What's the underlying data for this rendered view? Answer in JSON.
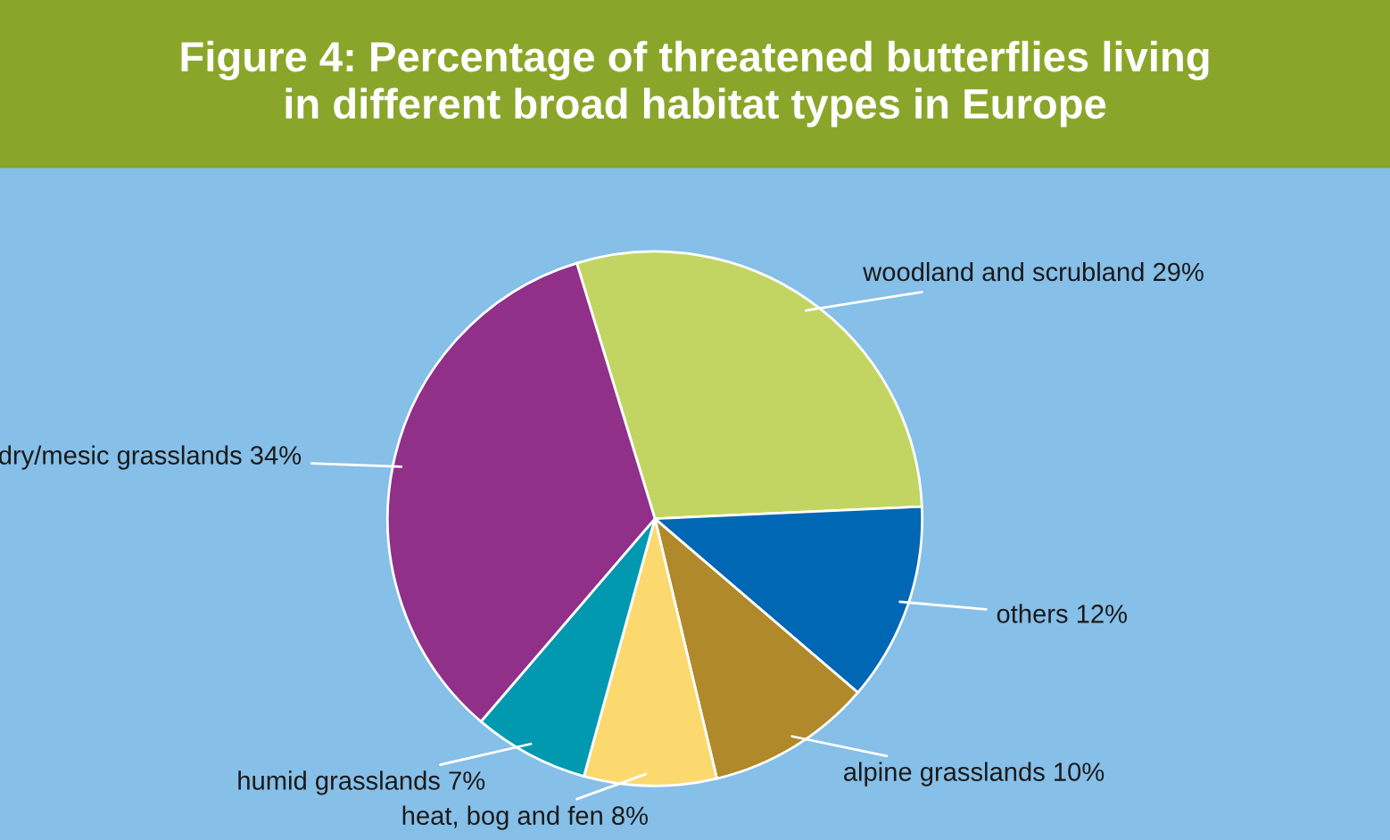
{
  "chart_data": {
    "type": "pie",
    "title": "Figure 4: Percentage of threatened butterflies living\nin different broad habitat types in Europe",
    "categories": [
      "woodland and scrubland",
      "others",
      "alpine grasslands",
      "heat, bog and fen",
      "humid grasslands",
      "dry/mesic grasslands"
    ],
    "values": [
      29,
      12,
      10,
      8,
      7,
      34
    ],
    "value_labels": [
      "29%",
      "12%",
      "10%",
      "8%",
      "7%",
      "34%"
    ],
    "colors": [
      "#c2d563",
      "#0067b5",
      "#b0892a",
      "#fcd96e",
      "#0099b0",
      "#903089"
    ]
  }
}
